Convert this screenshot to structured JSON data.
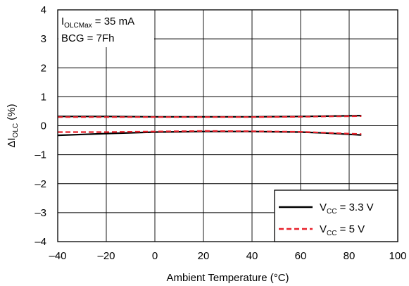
{
  "chart_data": {
    "type": "line",
    "title": "",
    "xlabel": "Ambient Temperature (°C)",
    "ylabel": {
      "prefix": "ΔI",
      "sub": "OLC",
      "suffix": " (%)"
    },
    "xlim": [
      -40,
      100
    ],
    "ylim": [
      -4,
      4
    ],
    "x_ticks": [
      -40,
      -20,
      0,
      20,
      40,
      60,
      80,
      100
    ],
    "y_ticks": [
      -4,
      -3,
      -2,
      -1,
      0,
      1,
      2,
      3,
      4
    ],
    "x_tick_labels": [
      "–40",
      "–20",
      "0",
      "20",
      "40",
      "60",
      "80",
      "100"
    ],
    "y_tick_labels": [
      "–4",
      "–3",
      "–2",
      "–1",
      "0",
      "1",
      "2",
      "3",
      "4"
    ],
    "grid": true,
    "legend_position": "bottom-right",
    "annotations": [
      {
        "prefix": "I",
        "sub": "OLCMax",
        "suffix": " = 35 mA"
      },
      {
        "prefix": "BCG = 7Fh",
        "sub": "",
        "suffix": ""
      }
    ],
    "series": [
      {
        "name": {
          "prefix": "V",
          "sub": "CC",
          "suffix": " = 3.3 V"
        },
        "color": "#000000",
        "style": "solid",
        "lines": [
          {
            "x": [
              -40,
              -20,
              0,
              20,
              40,
              60,
              70,
              85
            ],
            "y": [
              0.32,
              0.32,
              0.31,
              0.31,
              0.31,
              0.32,
              0.33,
              0.35
            ]
          },
          {
            "x": [
              -40,
              -20,
              0,
              20,
              40,
              60,
              70,
              85
            ],
            "y": [
              -0.33,
              -0.27,
              -0.22,
              -0.2,
              -0.2,
              -0.22,
              -0.25,
              -0.32
            ]
          }
        ]
      },
      {
        "name": {
          "prefix": "V",
          "sub": "CC",
          "suffix": " = 5 V"
        },
        "color": "#e8202a",
        "style": "dashed",
        "lines": [
          {
            "x": [
              -40,
              -20,
              0,
              20,
              40,
              60,
              70,
              85
            ],
            "y": [
              0.3,
              0.3,
              0.3,
              0.3,
              0.3,
              0.31,
              0.32,
              0.33
            ]
          },
          {
            "x": [
              -40,
              -20,
              0,
              20,
              40,
              60,
              70,
              85
            ],
            "y": [
              -0.22,
              -0.22,
              -0.2,
              -0.18,
              -0.19,
              -0.21,
              -0.24,
              -0.29
            ]
          }
        ]
      }
    ]
  }
}
